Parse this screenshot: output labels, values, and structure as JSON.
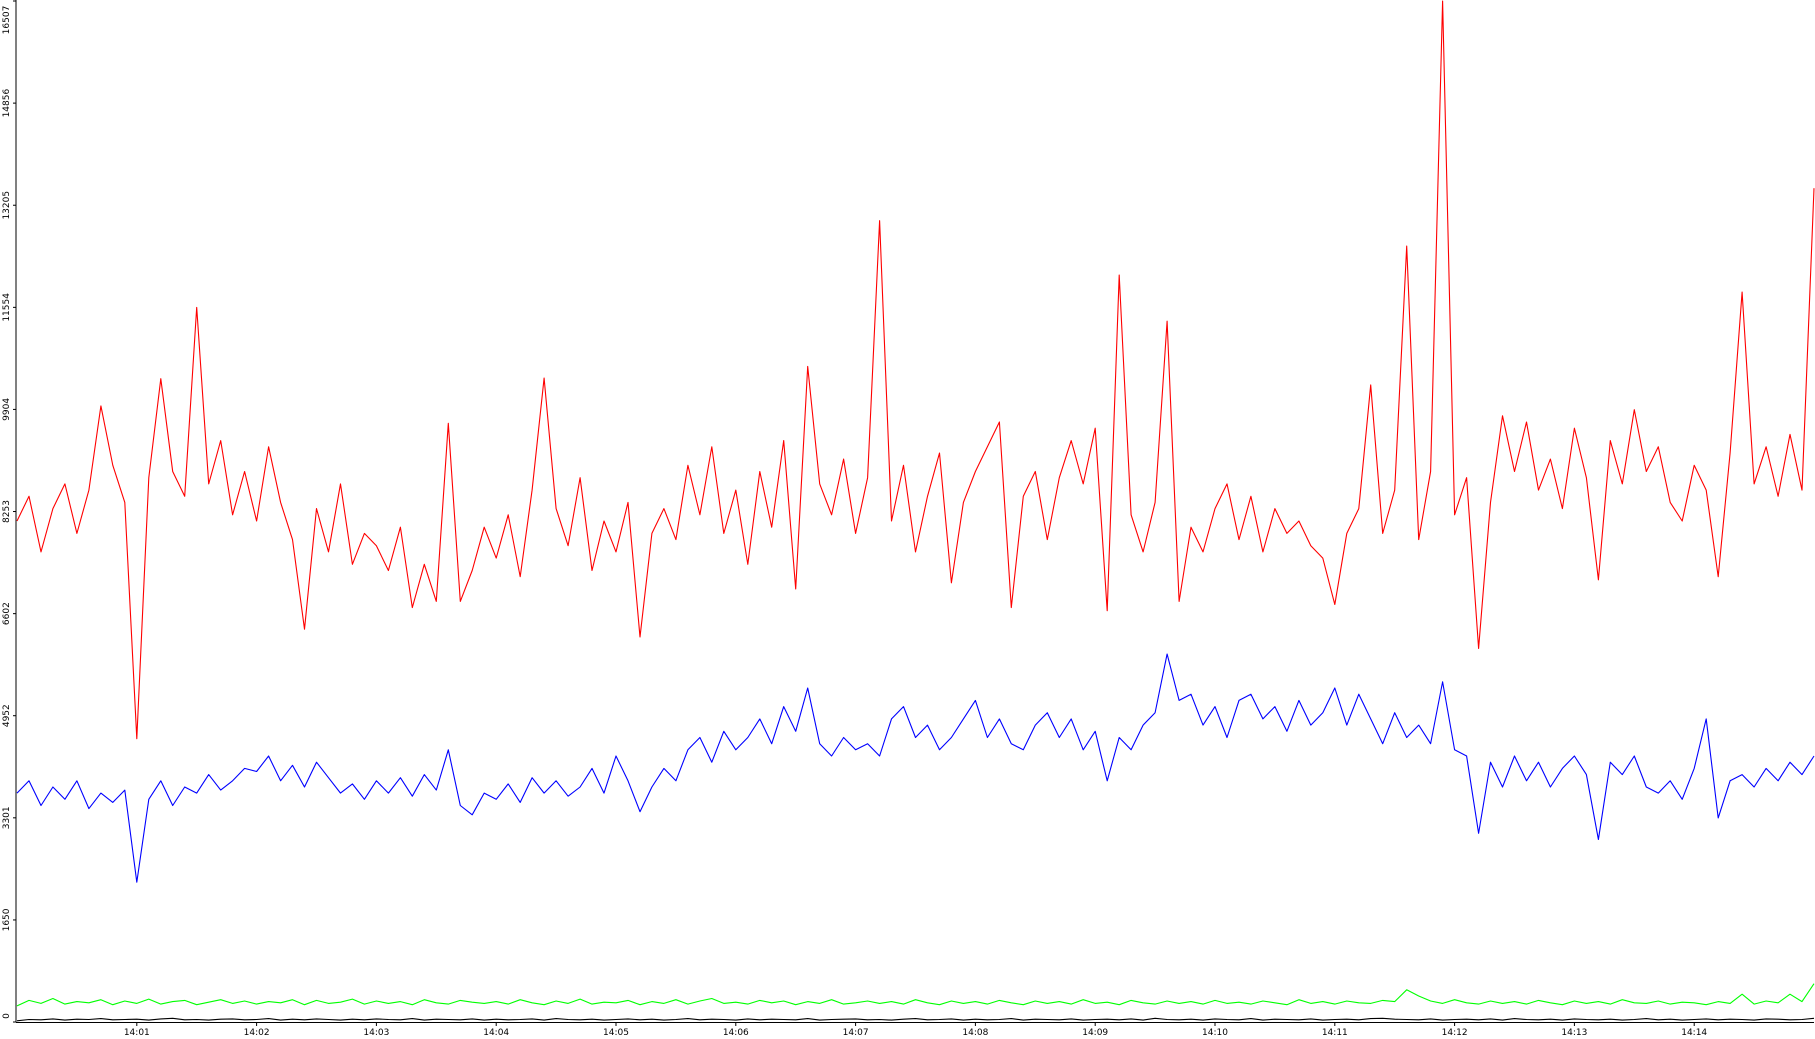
{
  "chart_data": {
    "type": "line",
    "categories": [
      null,
      null,
      null,
      null,
      null,
      null,
      null,
      null,
      null,
      null,
      "14:01",
      null,
      null,
      null,
      null,
      null,
      null,
      null,
      null,
      null,
      "14:02",
      null,
      null,
      null,
      null,
      null,
      null,
      null,
      null,
      null,
      "14:03",
      null,
      null,
      null,
      null,
      null,
      null,
      null,
      null,
      null,
      "14:04",
      null,
      null,
      null,
      null,
      null,
      null,
      null,
      null,
      null,
      "14:05",
      null,
      null,
      null,
      null,
      null,
      null,
      null,
      null,
      null,
      "14:06",
      null,
      null,
      null,
      null,
      null,
      null,
      null,
      null,
      null,
      "14:07",
      null,
      null,
      null,
      null,
      null,
      null,
      null,
      null,
      null,
      "14:08",
      null,
      null,
      null,
      null,
      null,
      null,
      null,
      null,
      null,
      "14:09",
      null,
      null,
      null,
      null,
      null,
      null,
      null,
      null,
      null,
      "14:10",
      null,
      null,
      null,
      null,
      null,
      null,
      null,
      null,
      null,
      "14:11",
      null,
      null,
      null,
      null,
      null,
      null,
      null,
      null,
      null,
      "14:12",
      null,
      null,
      null,
      null,
      null,
      null,
      null,
      null,
      null,
      "14:13",
      null,
      null,
      null,
      null,
      null,
      null,
      null,
      null,
      null,
      "14:14",
      null,
      null,
      null,
      null,
      null,
      null,
      null,
      null,
      null,
      null
    ],
    "series": [
      {
        "color": "#ff0000",
        "values": [
          8100,
          8500,
          7600,
          8300,
          8700,
          7900,
          8600,
          9960,
          9000,
          8400,
          4580,
          8800,
          10400,
          8900,
          8500,
          11553,
          8700,
          9400,
          8200,
          8900,
          8100,
          9300,
          8400,
          7800,
          6350,
          8300,
          7600,
          8700,
          7400,
          7900,
          7700,
          7300,
          8000,
          6700,
          7400,
          6800,
          9680,
          6800,
          7300,
          8000,
          7500,
          8200,
          7200,
          8600,
          10410,
          8300,
          7700,
          8800,
          7300,
          8100,
          7600,
          8400,
          6225,
          7900,
          8300,
          7800,
          9000,
          8200,
          9300,
          7900,
          8600,
          7400,
          8900,
          8000,
          9400,
          7000,
          10600,
          8700,
          8200,
          9100,
          7900,
          8800,
          12955,
          8100,
          9000,
          7600,
          8500,
          9200,
          7100,
          8400,
          8900,
          9300,
          9700,
          6700,
          8500,
          8900,
          7800,
          8800,
          9400,
          8700,
          9600,
          6650,
          12077,
          8200,
          7600,
          8400,
          11330,
          6800,
          8000,
          7600,
          8300,
          8700,
          7800,
          8500,
          7600,
          8300,
          7900,
          8100,
          7700,
          7500,
          6750,
          7900,
          8300,
          10300,
          7900,
          8600,
          12545,
          7800,
          8900,
          16507,
          8200,
          8800,
          6040,
          8400,
          9800,
          8900,
          9700,
          8600,
          9100,
          8300,
          9600,
          8800,
          7150,
          9400,
          8700,
          9900,
          8900,
          9300,
          8400,
          8100,
          9000,
          8600,
          7200,
          9200,
          11800,
          8700,
          9300,
          8500,
          9500,
          8600,
          13480
        ]
      },
      {
        "color": "#0000ff",
        "values": [
          3700,
          3900,
          3500,
          3800,
          3600,
          3900,
          3450,
          3700,
          3550,
          3750,
          2260,
          3600,
          3900,
          3500,
          3800,
          3700,
          4000,
          3750,
          3900,
          4100,
          4050,
          4300,
          3900,
          4150,
          3800,
          4200,
          3950,
          3700,
          3850,
          3600,
          3900,
          3700,
          3950,
          3650,
          4000,
          3750,
          4400,
          3500,
          3350,
          3700,
          3600,
          3850,
          3550,
          3950,
          3700,
          3900,
          3650,
          3800,
          4100,
          3700,
          4300,
          3900,
          3400,
          3800,
          4100,
          3900,
          4400,
          4600,
          4200,
          4700,
          4400,
          4600,
          4900,
          4500,
          5100,
          4700,
          5400,
          4500,
          4300,
          4600,
          4400,
          4500,
          4300,
          4900,
          5100,
          4600,
          4800,
          4400,
          4600,
          4900,
          5200,
          4600,
          4900,
          4500,
          4400,
          4800,
          5000,
          4600,
          4900,
          4400,
          4700,
          3900,
          4600,
          4400,
          4800,
          5000,
          5950,
          5200,
          5300,
          4800,
          5100,
          4600,
          5200,
          5300,
          4900,
          5100,
          4700,
          5200,
          4800,
          5000,
          5400,
          4800,
          5300,
          4900,
          4500,
          5000,
          4600,
          4800,
          4500,
          5500,
          4400,
          4300,
          3050,
          4200,
          3800,
          4300,
          3900,
          4200,
          3800,
          4100,
          4300,
          4000,
          2950,
          4200,
          4000,
          4300,
          3800,
          3700,
          3900,
          3600,
          4100,
          4900,
          3300,
          3900,
          4000,
          3800,
          4100,
          3900,
          4200,
          4000,
          4300
        ]
      },
      {
        "color": "#00ff00",
        "values": [
          260,
          350,
          300,
          380,
          290,
          330,
          310,
          360,
          280,
          340,
          300,
          370,
          290,
          330,
          350,
          280,
          320,
          360,
          300,
          340,
          290,
          330,
          310,
          360,
          280,
          350,
          300,
          320,
          370,
          290,
          340,
          300,
          330,
          280,
          360,
          310,
          290,
          350,
          320,
          300,
          330,
          290,
          360,
          310,
          280,
          340,
          300,
          370,
          290,
          320,
          310,
          350,
          280,
          330,
          300,
          360,
          290,
          340,
          380,
          300,
          320,
          290,
          350,
          310,
          340,
          280,
          330,
          300,
          360,
          290,
          310,
          340,
          300,
          330,
          290,
          360,
          310,
          280,
          340,
          300,
          330,
          290,
          350,
          310,
          280,
          340,
          300,
          330,
          290,
          360,
          300,
          320,
          280,
          350,
          310,
          290,
          340,
          300,
          330,
          290,
          350,
          300,
          320,
          290,
          340,
          310,
          280,
          360,
          300,
          330,
          290,
          340,
          310,
          300,
          350,
          330,
          520,
          420,
          340,
          300,
          360,
          310,
          290,
          340,
          300,
          330,
          290,
          350,
          310,
          280,
          340,
          300,
          330,
          290,
          360,
          310,
          300,
          340,
          290,
          320,
          310,
          280,
          330,
          300,
          450,
          290,
          340,
          310,
          450,
          330,
          620
        ]
      },
      {
        "color": "#000000",
        "values": [
          20,
          40,
          35,
          50,
          30,
          45,
          40,
          55,
          35,
          40,
          45,
          30,
          50,
          60,
          35,
          40,
          30,
          45,
          50,
          35,
          40,
          55,
          30,
          45,
          35,
          50,
          40,
          30,
          45,
          35,
          50,
          40,
          35,
          55,
          30,
          45,
          40,
          35,
          50,
          30,
          45,
          35,
          40,
          50,
          30,
          55,
          40,
          35,
          45,
          30,
          40,
          50,
          35,
          45,
          30,
          40,
          55,
          35,
          45,
          40,
          30,
          50,
          35,
          45,
          40,
          35,
          55,
          30,
          40,
          45,
          50,
          35,
          40,
          30,
          45,
          55,
          35,
          40,
          50,
          30,
          45,
          35,
          40,
          55,
          30,
          45,
          40,
          35,
          50,
          30,
          40,
          45,
          35,
          50,
          30,
          60,
          40,
          35,
          45,
          30,
          50,
          40,
          35,
          55,
          30,
          45,
          40,
          35,
          50,
          30,
          40,
          45,
          35,
          55,
          60,
          45,
          40,
          35,
          50,
          30,
          40,
          45,
          35,
          50,
          30,
          55,
          40,
          35,
          45,
          30,
          50,
          40,
          35,
          45,
          30,
          40,
          55,
          35,
          45,
          30,
          40,
          50,
          35,
          45,
          40,
          30,
          50,
          45,
          35,
          40,
          60
        ]
      }
    ],
    "ylim": [
      0,
      16507
    ],
    "yticks": [
      0,
      1650,
      3301,
      4952,
      6602,
      8253,
      9904,
      11554,
      13205,
      14856,
      16507
    ]
  }
}
